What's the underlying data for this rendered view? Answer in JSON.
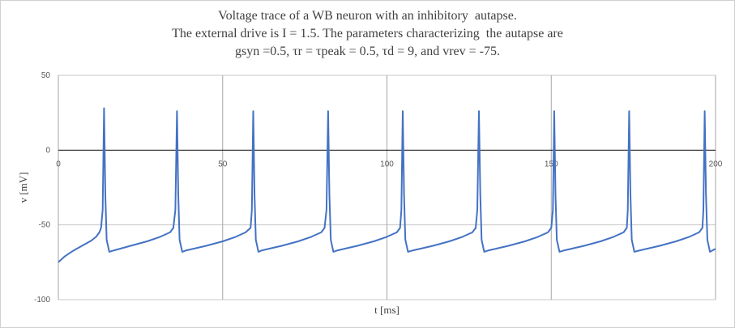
{
  "chart_data": {
    "type": "line",
    "title_lines": [
      "Voltage trace of a WB neuron with an inhibitory  autapse.",
      "The external drive is I = 1.5. The parameters characterizing  the autapse are",
      "gsyn =0.5, τr = τpeak = 0.5, τd = 9, and vrev = -75."
    ],
    "xlabel": "t [ms]",
    "ylabel": "v [mV]",
    "xlim": [
      0,
      200
    ],
    "ylim": [
      -100,
      50
    ],
    "xticks": [
      0,
      50,
      100,
      150,
      200
    ],
    "yticks": [
      -100,
      -50,
      0,
      50
    ],
    "grid": true,
    "line_color": "#4472C4",
    "series": [
      {
        "values": [
          [
            0,
            -75
          ],
          [
            2,
            -71
          ],
          [
            4,
            -68
          ],
          [
            6,
            -65.5
          ],
          [
            8,
            -63
          ],
          [
            10,
            -60.5
          ],
          [
            11.5,
            -58
          ],
          [
            12.5,
            -55
          ],
          [
            13,
            -52
          ],
          [
            13.5,
            -40
          ],
          [
            13.9,
            28
          ],
          [
            14.3,
            -30
          ],
          [
            14.7,
            -60
          ],
          [
            15.5,
            -68
          ],
          [
            17,
            -67
          ],
          [
            22,
            -64
          ],
          [
            27,
            -61
          ],
          [
            31,
            -58
          ],
          [
            34,
            -55
          ],
          [
            35,
            -52
          ],
          [
            35.6,
            -40
          ],
          [
            36.1,
            26
          ],
          [
            36.5,
            -30
          ],
          [
            36.9,
            -60
          ],
          [
            37.7,
            -68
          ],
          [
            39,
            -67
          ],
          [
            45,
            -64
          ],
          [
            50,
            -61
          ],
          [
            54,
            -58
          ],
          [
            57,
            -55
          ],
          [
            58.5,
            -52
          ],
          [
            58.9,
            -40
          ],
          [
            59.3,
            26
          ],
          [
            59.7,
            -30
          ],
          [
            60.1,
            -60
          ],
          [
            60.9,
            -68
          ],
          [
            62,
            -67
          ],
          [
            68,
            -64
          ],
          [
            73,
            -61
          ],
          [
            77,
            -58
          ],
          [
            80,
            -55
          ],
          [
            81,
            -52
          ],
          [
            81.6,
            -40
          ],
          [
            82.1,
            26
          ],
          [
            82.5,
            -30
          ],
          [
            82.9,
            -60
          ],
          [
            83.7,
            -68
          ],
          [
            85,
            -67
          ],
          [
            91,
            -64
          ],
          [
            96,
            -61
          ],
          [
            100,
            -58
          ],
          [
            103,
            -55
          ],
          [
            104,
            -52
          ],
          [
            104.4,
            -40
          ],
          [
            104.8,
            26
          ],
          [
            105.2,
            -30
          ],
          [
            105.6,
            -60
          ],
          [
            106.4,
            -68
          ],
          [
            108,
            -67
          ],
          [
            114,
            -64
          ],
          [
            119,
            -61
          ],
          [
            123,
            -58
          ],
          [
            126,
            -55
          ],
          [
            127,
            -52
          ],
          [
            127.5,
            -40
          ],
          [
            128,
            26
          ],
          [
            128.4,
            -30
          ],
          [
            128.8,
            -60
          ],
          [
            129.6,
            -68
          ],
          [
            131,
            -67
          ],
          [
            137,
            -64
          ],
          [
            142,
            -61
          ],
          [
            146,
            -58
          ],
          [
            149,
            -55
          ],
          [
            150,
            -52
          ],
          [
            150.5,
            -40
          ],
          [
            150.9,
            26
          ],
          [
            151.3,
            -30
          ],
          [
            151.7,
            -60
          ],
          [
            152.5,
            -68
          ],
          [
            154,
            -67
          ],
          [
            160,
            -64
          ],
          [
            165,
            -61
          ],
          [
            169,
            -58
          ],
          [
            172,
            -55
          ],
          [
            173,
            -52
          ],
          [
            173.3,
            -40
          ],
          [
            173.7,
            26
          ],
          [
            174.1,
            -30
          ],
          [
            174.5,
            -60
          ],
          [
            175.3,
            -68
          ],
          [
            177,
            -67
          ],
          [
            183,
            -64
          ],
          [
            188,
            -61
          ],
          [
            192,
            -58
          ],
          [
            195,
            -55
          ],
          [
            196,
            -52
          ],
          [
            196.3,
            -40
          ],
          [
            196.7,
            26
          ],
          [
            197.1,
            -30
          ],
          [
            197.5,
            -60
          ],
          [
            198.3,
            -68
          ],
          [
            200,
            -66
          ]
        ]
      }
    ]
  }
}
